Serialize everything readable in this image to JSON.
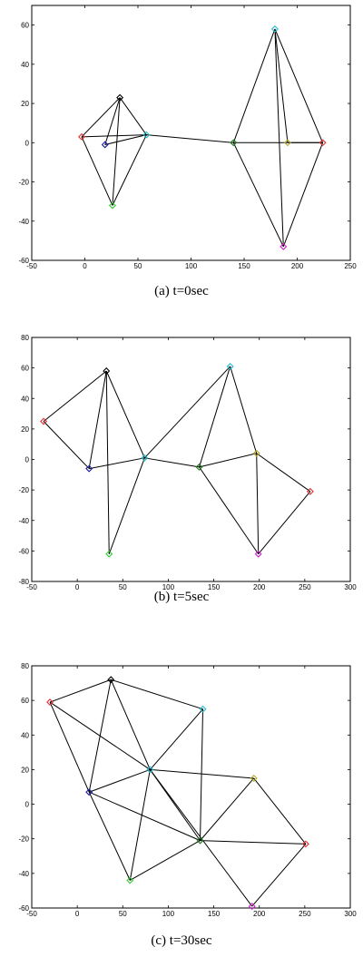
{
  "chart_data": [
    {
      "type": "scatter",
      "caption": "(a) t=0sec",
      "xlim": [
        -50,
        250
      ],
      "ylim": [
        -60,
        70
      ],
      "xticks": [
        -50,
        0,
        50,
        100,
        150,
        200,
        250
      ],
      "yticks": [
        -60,
        -40,
        -20,
        0,
        20,
        40,
        60
      ],
      "grid": false,
      "nodes": [
        {
          "id": "red",
          "color": "#e03030",
          "x": -3,
          "y": 3
        },
        {
          "id": "blue",
          "color": "#1a1aa0",
          "x": 19,
          "y": -1
        },
        {
          "id": "black",
          "color": "#000000",
          "x": 33,
          "y": 23
        },
        {
          "id": "green",
          "color": "#33cc33",
          "x": 26,
          "y": -32
        },
        {
          "id": "cyan",
          "color": "#22bbcc",
          "x": 58,
          "y": 4
        },
        {
          "id": "darkgreen",
          "color": "#1e7a1e",
          "x": 140,
          "y": 0
        },
        {
          "id": "cyan2",
          "color": "#22bbcc",
          "x": 179,
          "y": 58
        },
        {
          "id": "magenta",
          "color": "#cc22cc",
          "x": 187,
          "y": -53
        },
        {
          "id": "olive",
          "color": "#b5a82a",
          "x": 191,
          "y": 0
        },
        {
          "id": "red2",
          "color": "#e03030",
          "x": 224,
          "y": 0
        }
      ],
      "edges": [
        [
          "red",
          "black"
        ],
        [
          "red",
          "cyan"
        ],
        [
          "red",
          "green"
        ],
        [
          "blue",
          "black"
        ],
        [
          "blue",
          "cyan"
        ],
        [
          "black",
          "cyan"
        ],
        [
          "black",
          "green"
        ],
        [
          "green",
          "cyan"
        ],
        [
          "cyan",
          "darkgreen"
        ],
        [
          "darkgreen",
          "red2"
        ],
        [
          "darkgreen",
          "cyan2"
        ],
        [
          "darkgreen",
          "magenta"
        ],
        [
          "cyan2",
          "red2"
        ],
        [
          "cyan2",
          "olive"
        ],
        [
          "magenta",
          "red2"
        ],
        [
          "magenta",
          "cyan2"
        ],
        [
          "olive",
          "red2"
        ]
      ]
    },
    {
      "type": "scatter",
      "caption": "(b) t=5sec",
      "xlim": [
        -50,
        300
      ],
      "ylim": [
        -80,
        80
      ],
      "xticks": [
        -50,
        0,
        50,
        100,
        150,
        200,
        250,
        300
      ],
      "yticks": [
        -80,
        -60,
        -40,
        -20,
        0,
        20,
        40,
        60,
        80
      ],
      "grid": false,
      "nodes": [
        {
          "id": "red",
          "color": "#e03030",
          "x": -37,
          "y": 25
        },
        {
          "id": "black",
          "color": "#000000",
          "x": 32,
          "y": 58
        },
        {
          "id": "blue",
          "color": "#1a1aa0",
          "x": 13,
          "y": -6
        },
        {
          "id": "cyan",
          "color": "#22bbcc",
          "x": 74,
          "y": 1
        },
        {
          "id": "green",
          "color": "#33cc33",
          "x": 35,
          "y": -62
        },
        {
          "id": "darkgreen",
          "color": "#1e7a1e",
          "x": 134,
          "y": -5
        },
        {
          "id": "cyan2",
          "color": "#22bbcc",
          "x": 168,
          "y": 61
        },
        {
          "id": "olive",
          "color": "#b5a82a",
          "x": 197,
          "y": 4
        },
        {
          "id": "magenta",
          "color": "#cc22cc",
          "x": 199,
          "y": -62
        },
        {
          "id": "red2",
          "color": "#e03030",
          "x": 256,
          "y": -21
        }
      ],
      "edges": [
        [
          "red",
          "black"
        ],
        [
          "red",
          "blue"
        ],
        [
          "black",
          "blue"
        ],
        [
          "black",
          "cyan"
        ],
        [
          "black",
          "green"
        ],
        [
          "blue",
          "cyan"
        ],
        [
          "cyan",
          "green"
        ],
        [
          "cyan",
          "darkgreen"
        ],
        [
          "cyan",
          "cyan2"
        ],
        [
          "darkgreen",
          "cyan2"
        ],
        [
          "darkgreen",
          "olive"
        ],
        [
          "darkgreen",
          "magenta"
        ],
        [
          "cyan2",
          "olive"
        ],
        [
          "olive",
          "magenta"
        ],
        [
          "olive",
          "red2"
        ],
        [
          "magenta",
          "red2"
        ]
      ]
    },
    {
      "type": "scatter",
      "caption": "(c) t=30sec",
      "xlim": [
        -50,
        300
      ],
      "ylim": [
        -60,
        80
      ],
      "xticks": [
        -50,
        0,
        50,
        100,
        150,
        200,
        250,
        300
      ],
      "yticks": [
        -60,
        -40,
        -20,
        0,
        20,
        40,
        60,
        80
      ],
      "grid": false,
      "nodes": [
        {
          "id": "red",
          "color": "#e03030",
          "x": -30,
          "y": 59
        },
        {
          "id": "black",
          "color": "#000000",
          "x": 37,
          "y": 72
        },
        {
          "id": "blue",
          "color": "#1a1aa0",
          "x": 13,
          "y": 7
        },
        {
          "id": "cyan",
          "color": "#22bbcc",
          "x": 80,
          "y": 20
        },
        {
          "id": "cyan2",
          "color": "#22bbcc",
          "x": 138,
          "y": 55
        },
        {
          "id": "olive",
          "color": "#b5a82a",
          "x": 194,
          "y": 15
        },
        {
          "id": "darkgreen",
          "color": "#1e7a1e",
          "x": 135,
          "y": -21
        },
        {
          "id": "green",
          "color": "#33cc33",
          "x": 58,
          "y": -44
        },
        {
          "id": "red2",
          "color": "#e03030",
          "x": 251,
          "y": -23
        },
        {
          "id": "magenta",
          "color": "#cc22cc",
          "x": 192,
          "y": -59
        }
      ],
      "edges": [
        [
          "red",
          "black"
        ],
        [
          "red",
          "blue"
        ],
        [
          "red",
          "cyan"
        ],
        [
          "black",
          "cyan"
        ],
        [
          "black",
          "cyan2"
        ],
        [
          "black",
          "blue"
        ],
        [
          "blue",
          "cyan"
        ],
        [
          "blue",
          "darkgreen"
        ],
        [
          "blue",
          "green"
        ],
        [
          "cyan",
          "cyan2"
        ],
        [
          "cyan",
          "olive"
        ],
        [
          "cyan",
          "darkgreen"
        ],
        [
          "cyan",
          "green"
        ],
        [
          "cyan",
          "magenta"
        ],
        [
          "cyan2",
          "darkgreen"
        ],
        [
          "olive",
          "darkgreen"
        ],
        [
          "olive",
          "red2"
        ],
        [
          "darkgreen",
          "red2"
        ],
        [
          "darkgreen",
          "green"
        ],
        [
          "red2",
          "magenta"
        ]
      ]
    }
  ]
}
